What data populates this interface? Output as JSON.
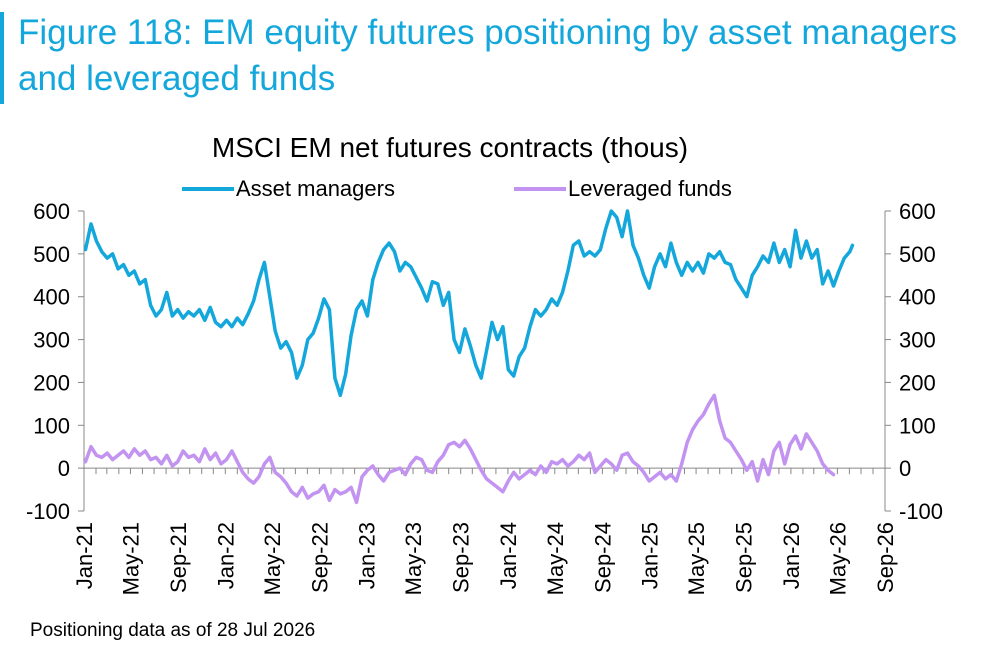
{
  "figure": {
    "title": "Figure 118: EM equity futures positioning by asset managers and leveraged funds",
    "footnote": "Positioning data as of 28 Jul 2026"
  },
  "colors": {
    "accent": "#14a7dc",
    "asset_managers": "#14a7dc",
    "leveraged_funds": "#c293f0",
    "axis": "#888888"
  },
  "chart_data": {
    "type": "line",
    "title": "MSCI EM net futures contracts  (thous)",
    "xlabel": "",
    "ylabel": "",
    "ylim": [
      -100,
      600
    ],
    "yticks": [
      -100,
      0,
      100,
      200,
      300,
      400,
      500,
      600
    ],
    "x_tick_labels": [
      "Jan-21",
      "May-21",
      "Sep-21",
      "Jan-22",
      "May-22",
      "Sep-22",
      "Jan-23",
      "May-23",
      "Sep-23",
      "Jan-24",
      "May-24",
      "Sep-24",
      "Jan-25",
      "May-25",
      "Sep-25",
      "Jan-26",
      "May-26",
      "Sep-26"
    ],
    "legend_position": "top-center",
    "grid": false,
    "series": [
      {
        "name": "Asset managers",
        "points": [
          [
            "2021-01-05",
            510
          ],
          [
            "2021-01-19",
            570
          ],
          [
            "2021-02-02",
            530
          ],
          [
            "2021-02-16",
            505
          ],
          [
            "2021-03-02",
            490
          ],
          [
            "2021-03-16",
            500
          ],
          [
            "2021-03-30",
            465
          ],
          [
            "2021-04-13",
            475
          ],
          [
            "2021-04-27",
            450
          ],
          [
            "2021-05-11",
            460
          ],
          [
            "2021-05-25",
            430
          ],
          [
            "2021-06-08",
            440
          ],
          [
            "2021-06-22",
            380
          ],
          [
            "2021-07-06",
            355
          ],
          [
            "2021-07-20",
            370
          ],
          [
            "2021-08-03",
            410
          ],
          [
            "2021-08-17",
            355
          ],
          [
            "2021-08-31",
            370
          ],
          [
            "2021-09-14",
            350
          ],
          [
            "2021-09-28",
            365
          ],
          [
            "2021-10-12",
            355
          ],
          [
            "2021-10-26",
            370
          ],
          [
            "2021-11-09",
            345
          ],
          [
            "2021-11-23",
            375
          ],
          [
            "2021-12-07",
            340
          ],
          [
            "2021-12-21",
            330
          ],
          [
            "2022-01-04",
            345
          ],
          [
            "2022-01-18",
            330
          ],
          [
            "2022-02-01",
            350
          ],
          [
            "2022-02-15",
            335
          ],
          [
            "2022-03-01",
            360
          ],
          [
            "2022-03-15",
            390
          ],
          [
            "2022-03-29",
            440
          ],
          [
            "2022-04-12",
            480
          ],
          [
            "2022-04-26",
            400
          ],
          [
            "2022-05-10",
            320
          ],
          [
            "2022-05-24",
            280
          ],
          [
            "2022-06-07",
            295
          ],
          [
            "2022-06-21",
            270
          ],
          [
            "2022-07-05",
            210
          ],
          [
            "2022-07-19",
            240
          ],
          [
            "2022-08-02",
            300
          ],
          [
            "2022-08-16",
            315
          ],
          [
            "2022-08-30",
            350
          ],
          [
            "2022-09-13",
            395
          ],
          [
            "2022-09-27",
            370
          ],
          [
            "2022-10-11",
            210
          ],
          [
            "2022-10-25",
            170
          ],
          [
            "2022-11-08",
            220
          ],
          [
            "2022-11-22",
            310
          ],
          [
            "2022-12-06",
            370
          ],
          [
            "2022-12-20",
            390
          ],
          [
            "2023-01-03",
            355
          ],
          [
            "2023-01-17",
            440
          ],
          [
            "2023-01-31",
            480
          ],
          [
            "2023-02-14",
            510
          ],
          [
            "2023-02-28",
            525
          ],
          [
            "2023-03-14",
            505
          ],
          [
            "2023-03-28",
            460
          ],
          [
            "2023-04-11",
            480
          ],
          [
            "2023-04-25",
            470
          ],
          [
            "2023-05-09",
            445
          ],
          [
            "2023-05-23",
            420
          ],
          [
            "2023-06-06",
            390
          ],
          [
            "2023-06-20",
            435
          ],
          [
            "2023-07-04",
            430
          ],
          [
            "2023-07-18",
            380
          ],
          [
            "2023-08-01",
            410
          ],
          [
            "2023-08-15",
            300
          ],
          [
            "2023-08-29",
            270
          ],
          [
            "2023-09-12",
            325
          ],
          [
            "2023-09-26",
            285
          ],
          [
            "2023-10-10",
            240
          ],
          [
            "2023-10-24",
            210
          ],
          [
            "2023-11-07",
            275
          ],
          [
            "2023-11-21",
            340
          ],
          [
            "2023-12-05",
            300
          ],
          [
            "2023-12-19",
            330
          ],
          [
            "2024-01-02",
            230
          ],
          [
            "2024-01-16",
            215
          ],
          [
            "2024-01-30",
            260
          ],
          [
            "2024-02-13",
            280
          ],
          [
            "2024-02-27",
            330
          ],
          [
            "2024-03-12",
            370
          ],
          [
            "2024-03-26",
            355
          ],
          [
            "2024-04-09",
            370
          ],
          [
            "2024-04-23",
            395
          ],
          [
            "2024-05-07",
            380
          ],
          [
            "2024-05-21",
            410
          ],
          [
            "2024-06-04",
            460
          ],
          [
            "2024-06-18",
            520
          ],
          [
            "2024-07-02",
            530
          ],
          [
            "2024-07-16",
            495
          ],
          [
            "2024-07-30",
            505
          ],
          [
            "2024-08-13",
            495
          ],
          [
            "2024-08-27",
            510
          ],
          [
            "2024-09-10",
            560
          ],
          [
            "2024-09-24",
            600
          ],
          [
            "2024-10-08",
            585
          ],
          [
            "2024-10-22",
            540
          ],
          [
            "2024-11-05",
            600
          ],
          [
            "2024-11-19",
            520
          ],
          [
            "2024-12-03",
            490
          ],
          [
            "2024-12-17",
            450
          ],
          [
            "2024-12-31",
            420
          ],
          [
            "2025-01-14",
            470
          ],
          [
            "2025-01-28",
            500
          ],
          [
            "2025-02-11",
            470
          ],
          [
            "2025-02-25",
            525
          ],
          [
            "2025-03-11",
            480
          ],
          [
            "2025-03-25",
            450
          ],
          [
            "2025-04-08",
            480
          ],
          [
            "2025-04-22",
            460
          ],
          [
            "2025-05-06",
            480
          ],
          [
            "2025-05-20",
            455
          ],
          [
            "2025-06-03",
            500
          ],
          [
            "2025-06-17",
            490
          ],
          [
            "2025-07-01",
            505
          ],
          [
            "2025-07-15",
            480
          ],
          [
            "2025-07-29",
            475
          ],
          [
            "2025-08-12",
            440
          ],
          [
            "2025-08-26",
            420
          ],
          [
            "2025-09-09",
            400
          ],
          [
            "2025-09-23",
            450
          ],
          [
            "2025-10-07",
            470
          ],
          [
            "2025-10-21",
            495
          ],
          [
            "2025-11-04",
            480
          ],
          [
            "2025-11-18",
            525
          ],
          [
            "2025-12-02",
            480
          ],
          [
            "2025-12-16",
            510
          ],
          [
            "2025-12-30",
            470
          ],
          [
            "2026-01-13",
            555
          ],
          [
            "2026-01-27",
            490
          ],
          [
            "2026-02-10",
            530
          ],
          [
            "2026-02-24",
            490
          ],
          [
            "2026-03-10",
            510
          ],
          [
            "2026-03-24",
            430
          ],
          [
            "2026-04-07",
            460
          ],
          [
            "2026-04-21",
            425
          ],
          [
            "2026-05-05",
            460
          ],
          [
            "2026-05-19",
            490
          ],
          [
            "2026-06-02",
            505
          ],
          [
            "2026-06-09",
            520
          ]
        ]
      },
      {
        "name": "Leveraged funds",
        "points": [
          [
            "2021-01-05",
            15
          ],
          [
            "2021-01-19",
            50
          ],
          [
            "2021-02-02",
            30
          ],
          [
            "2021-02-16",
            25
          ],
          [
            "2021-03-02",
            35
          ],
          [
            "2021-03-16",
            20
          ],
          [
            "2021-03-30",
            30
          ],
          [
            "2021-04-13",
            40
          ],
          [
            "2021-04-27",
            25
          ],
          [
            "2021-05-11",
            45
          ],
          [
            "2021-05-25",
            30
          ],
          [
            "2021-06-08",
            40
          ],
          [
            "2021-06-22",
            20
          ],
          [
            "2021-07-06",
            25
          ],
          [
            "2021-07-20",
            10
          ],
          [
            "2021-08-03",
            30
          ],
          [
            "2021-08-17",
            5
          ],
          [
            "2021-08-31",
            15
          ],
          [
            "2021-09-14",
            40
          ],
          [
            "2021-09-28",
            25
          ],
          [
            "2021-10-12",
            30
          ],
          [
            "2021-10-26",
            15
          ],
          [
            "2021-11-09",
            45
          ],
          [
            "2021-11-23",
            20
          ],
          [
            "2021-12-07",
            35
          ],
          [
            "2021-12-21",
            10
          ],
          [
            "2022-01-04",
            20
          ],
          [
            "2022-01-18",
            40
          ],
          [
            "2022-02-01",
            15
          ],
          [
            "2022-02-15",
            -10
          ],
          [
            "2022-03-01",
            -25
          ],
          [
            "2022-03-15",
            -35
          ],
          [
            "2022-03-29",
            -20
          ],
          [
            "2022-04-12",
            10
          ],
          [
            "2022-04-26",
            25
          ],
          [
            "2022-05-10",
            -10
          ],
          [
            "2022-05-24",
            -20
          ],
          [
            "2022-06-07",
            -35
          ],
          [
            "2022-06-21",
            -55
          ],
          [
            "2022-07-05",
            -65
          ],
          [
            "2022-07-19",
            -45
          ],
          [
            "2022-08-02",
            -70
          ],
          [
            "2022-08-16",
            -60
          ],
          [
            "2022-08-30",
            -55
          ],
          [
            "2022-09-13",
            -40
          ],
          [
            "2022-09-27",
            -75
          ],
          [
            "2022-10-11",
            -50
          ],
          [
            "2022-10-25",
            -60
          ],
          [
            "2022-11-08",
            -55
          ],
          [
            "2022-11-22",
            -45
          ],
          [
            "2022-12-06",
            -80
          ],
          [
            "2022-12-20",
            -20
          ],
          [
            "2023-01-03",
            -5
          ],
          [
            "2023-01-17",
            5
          ],
          [
            "2023-01-31",
            -15
          ],
          [
            "2023-02-14",
            -30
          ],
          [
            "2023-02-28",
            -10
          ],
          [
            "2023-03-14",
            -5
          ],
          [
            "2023-03-28",
            0
          ],
          [
            "2023-04-11",
            -15
          ],
          [
            "2023-04-25",
            10
          ],
          [
            "2023-05-09",
            25
          ],
          [
            "2023-05-23",
            20
          ],
          [
            "2023-06-06",
            -5
          ],
          [
            "2023-06-20",
            -10
          ],
          [
            "2023-07-04",
            15
          ],
          [
            "2023-07-18",
            30
          ],
          [
            "2023-08-01",
            55
          ],
          [
            "2023-08-15",
            60
          ],
          [
            "2023-08-29",
            50
          ],
          [
            "2023-09-12",
            65
          ],
          [
            "2023-09-26",
            45
          ],
          [
            "2023-10-10",
            20
          ],
          [
            "2023-10-24",
            -5
          ],
          [
            "2023-11-07",
            -25
          ],
          [
            "2023-11-21",
            -35
          ],
          [
            "2023-12-05",
            -45
          ],
          [
            "2023-12-19",
            -55
          ],
          [
            "2024-01-02",
            -30
          ],
          [
            "2024-01-16",
            -10
          ],
          [
            "2024-01-30",
            -25
          ],
          [
            "2024-02-13",
            -15
          ],
          [
            "2024-02-27",
            -5
          ],
          [
            "2024-03-12",
            -15
          ],
          [
            "2024-03-26",
            5
          ],
          [
            "2024-04-09",
            -10
          ],
          [
            "2024-04-23",
            15
          ],
          [
            "2024-05-07",
            10
          ],
          [
            "2024-05-21",
            20
          ],
          [
            "2024-06-04",
            5
          ],
          [
            "2024-06-18",
            15
          ],
          [
            "2024-07-02",
            30
          ],
          [
            "2024-07-16",
            20
          ],
          [
            "2024-07-30",
            35
          ],
          [
            "2024-08-13",
            -10
          ],
          [
            "2024-08-27",
            5
          ],
          [
            "2024-09-10",
            20
          ],
          [
            "2024-09-24",
            10
          ],
          [
            "2024-10-08",
            -5
          ],
          [
            "2024-10-22",
            30
          ],
          [
            "2024-11-05",
            35
          ],
          [
            "2024-11-19",
            15
          ],
          [
            "2024-12-03",
            5
          ],
          [
            "2024-12-17",
            -10
          ],
          [
            "2024-12-31",
            -30
          ],
          [
            "2025-01-14",
            -20
          ],
          [
            "2025-01-28",
            -10
          ],
          [
            "2025-02-11",
            -25
          ],
          [
            "2025-02-25",
            -15
          ],
          [
            "2025-03-11",
            -30
          ],
          [
            "2025-03-25",
            10
          ],
          [
            "2025-04-08",
            60
          ],
          [
            "2025-04-22",
            90
          ],
          [
            "2025-05-06",
            110
          ],
          [
            "2025-05-20",
            125
          ],
          [
            "2025-06-03",
            150
          ],
          [
            "2025-06-17",
            170
          ],
          [
            "2025-07-01",
            110
          ],
          [
            "2025-07-15",
            70
          ],
          [
            "2025-07-29",
            60
          ],
          [
            "2025-08-12",
            40
          ],
          [
            "2025-08-26",
            20
          ],
          [
            "2025-09-09",
            -5
          ],
          [
            "2025-09-23",
            15
          ],
          [
            "2025-10-07",
            -30
          ],
          [
            "2025-10-21",
            20
          ],
          [
            "2025-11-04",
            -15
          ],
          [
            "2025-11-18",
            40
          ],
          [
            "2025-12-02",
            60
          ],
          [
            "2025-12-16",
            10
          ],
          [
            "2025-12-30",
            55
          ],
          [
            "2026-01-13",
            75
          ],
          [
            "2026-01-27",
            45
          ],
          [
            "2026-02-10",
            80
          ],
          [
            "2026-02-24",
            60
          ],
          [
            "2026-03-10",
            40
          ],
          [
            "2026-03-24",
            10
          ],
          [
            "2026-04-07",
            -5
          ],
          [
            "2026-04-21",
            -15
          ]
        ]
      }
    ]
  }
}
